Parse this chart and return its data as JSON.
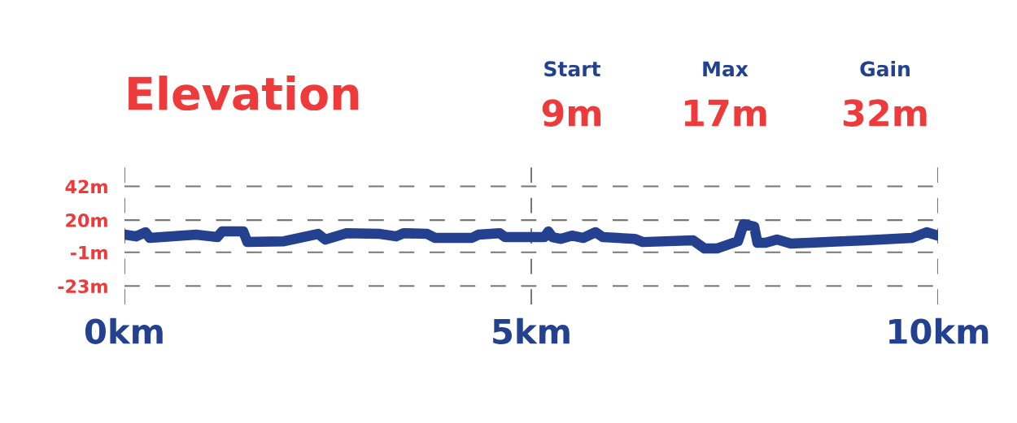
{
  "chart_data": {
    "type": "line",
    "title": "Elevation",
    "annotations": [
      "Start",
      "9m",
      "Max",
      "17m",
      "Gain",
      "32m"
    ],
    "x": [
      0,
      0.14,
      0.26,
      0.31,
      0.88,
      1.14,
      1.2,
      1.46,
      1.51,
      1.96,
      2.38,
      2.47,
      2.73,
      3.14,
      3.34,
      3.43,
      3.72,
      3.82,
      4.27,
      4.35,
      4.61,
      4.68,
      5.16,
      5.21,
      5.26,
      5.36,
      5.5,
      5.64,
      5.79,
      5.88,
      6.27,
      6.37,
      6.99,
      7.13,
      7.28,
      7.54,
      7.61,
      7.74,
      7.78,
      7.88,
      8.02,
      8.19,
      9.11,
      9.68,
      9.86,
      10
    ],
    "series": [
      {
        "color": "#23418f",
        "values": [
          10.5,
          9.4,
          12.1,
          8.4,
          10.5,
          8.9,
          12.6,
          12.6,
          5.7,
          6.2,
          11.0,
          7.3,
          11.5,
          11.0,
          9.4,
          11.5,
          11.0,
          8.4,
          8.4,
          10.5,
          11.5,
          8.9,
          8.9,
          12.6,
          8.9,
          7.8,
          9.9,
          8.4,
          12.1,
          8.9,
          7.8,
          5.7,
          6.8,
          1.5,
          1.5,
          6.2,
          17.4,
          15.8,
          5.2,
          5.2,
          7.3,
          4.7,
          6.8,
          8.4,
          12.1,
          9.9
        ]
      }
    ],
    "xlim": [
      0,
      10
    ],
    "xticks": [
      {
        "value": 0,
        "label": "0km"
      },
      {
        "value": 5,
        "label": "5km"
      },
      {
        "value": 10,
        "label": "10km"
      }
    ],
    "ylim": [
      -35,
      55
    ],
    "yticks": [
      {
        "value": -23,
        "label": "-23m"
      },
      {
        "value": -1,
        "label": "-1m"
      },
      {
        "value": 20,
        "label": "20m"
      },
      {
        "value": 42,
        "label": "42m"
      }
    ],
    "grid": true,
    "legend": false,
    "marker": "none",
    "line_style": "solid"
  }
}
